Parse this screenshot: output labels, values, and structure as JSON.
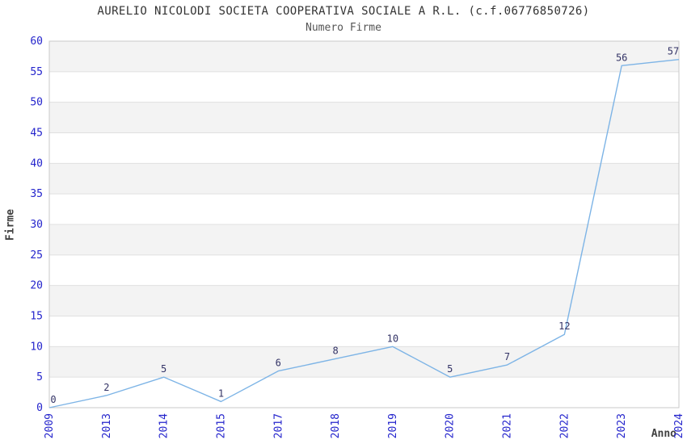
{
  "chart_data": {
    "type": "line",
    "title": "AURELIO NICOLODI SOCIETA COOPERATIVA SOCIALE A R.L. (c.f.06776850726)",
    "subtitle": "Numero Firme",
    "xlabel": "Anno",
    "ylabel": "Firme",
    "categories": [
      "2009",
      "2013",
      "2014",
      "2015",
      "2017",
      "2018",
      "2019",
      "2020",
      "2021",
      "2022",
      "2023",
      "2024"
    ],
    "values": [
      0,
      2,
      5,
      1,
      6,
      8,
      10,
      5,
      7,
      12,
      56,
      57
    ],
    "ylim": [
      0,
      60
    ],
    "ytick_step": 5,
    "grid": true,
    "legend": "none",
    "band_fill": "alternating",
    "colors": {
      "line": "#7db4e6",
      "tick_label": "#2424cc",
      "data_label": "#333366",
      "title": "#333333",
      "subtitle": "#555555",
      "axis_title": "#404040",
      "band": "#f3f3f3",
      "gridline": "#e0e0e0",
      "border": "#c9c9c9"
    }
  }
}
